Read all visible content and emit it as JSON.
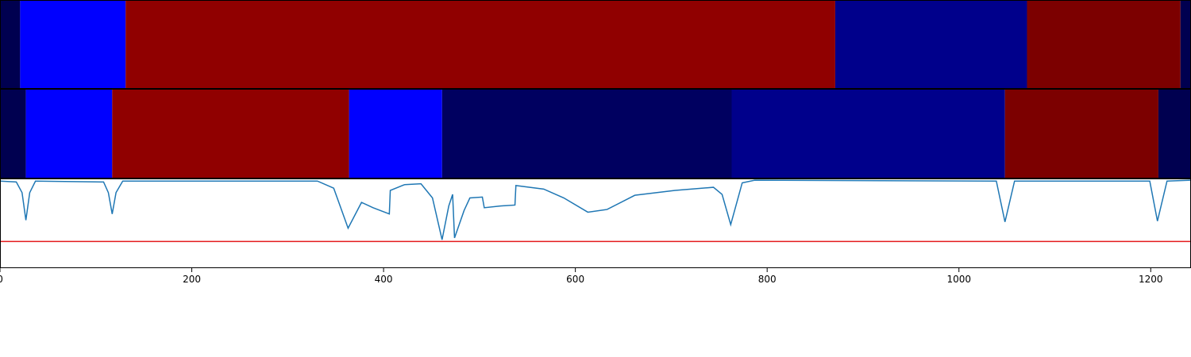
{
  "chart_data": [
    {
      "type": "segments",
      "xlim": [
        0,
        1242
      ],
      "boundaries": [
        0,
        21,
        131,
        871,
        1071,
        1231,
        1242
      ],
      "colors": [
        "#000050",
        "#0000ff",
        "#900000",
        "#00008b",
        "#7c0000",
        "#000050"
      ]
    },
    {
      "type": "segments",
      "xlim": [
        0,
        1242
      ],
      "boundaries": [
        0,
        27,
        117,
        364,
        461,
        763,
        1048,
        1208,
        1242
      ],
      "colors": [
        "#000050",
        "#0000ff",
        "#900000",
        "#0000ff",
        "#000060",
        "#00008b",
        "#7c0000",
        "#000050"
      ]
    },
    {
      "type": "line",
      "xlim": [
        0,
        1242
      ],
      "ylim": [
        0,
        1
      ],
      "xticks": [
        0,
        200,
        400,
        600,
        800,
        1000,
        1200
      ],
      "color": "#1f77b4",
      "threshold": 0.3,
      "threshold_color": "#e41a1c",
      "x": [
        0,
        17,
        23,
        27,
        31,
        37,
        108,
        113,
        117,
        121,
        128,
        331,
        348,
        363,
        377,
        389,
        406,
        407,
        422,
        439,
        451,
        461,
        468,
        472,
        474,
        484,
        490,
        503,
        505,
        522,
        537,
        538,
        567,
        588,
        613,
        633,
        662,
        704,
        744,
        753,
        762,
        774,
        787,
        1039,
        1048,
        1058,
        1199,
        1207,
        1217,
        1242
      ],
      "values": [
        0.98,
        0.97,
        0.85,
        0.54,
        0.85,
        0.98,
        0.97,
        0.85,
        0.61,
        0.85,
        0.98,
        0.98,
        0.9,
        0.45,
        0.74,
        0.68,
        0.61,
        0.875,
        0.94,
        0.95,
        0.79,
        0.32,
        0.7,
        0.83,
        0.34,
        0.65,
        0.79,
        0.8,
        0.68,
        0.7,
        0.71,
        0.93,
        0.89,
        0.79,
        0.63,
        0.66,
        0.82,
        0.875,
        0.91,
        0.83,
        0.49,
        0.96,
        0.99,
        0.98,
        0.52,
        0.98,
        0.98,
        0.53,
        0.98,
        0.99
      ]
    }
  ]
}
